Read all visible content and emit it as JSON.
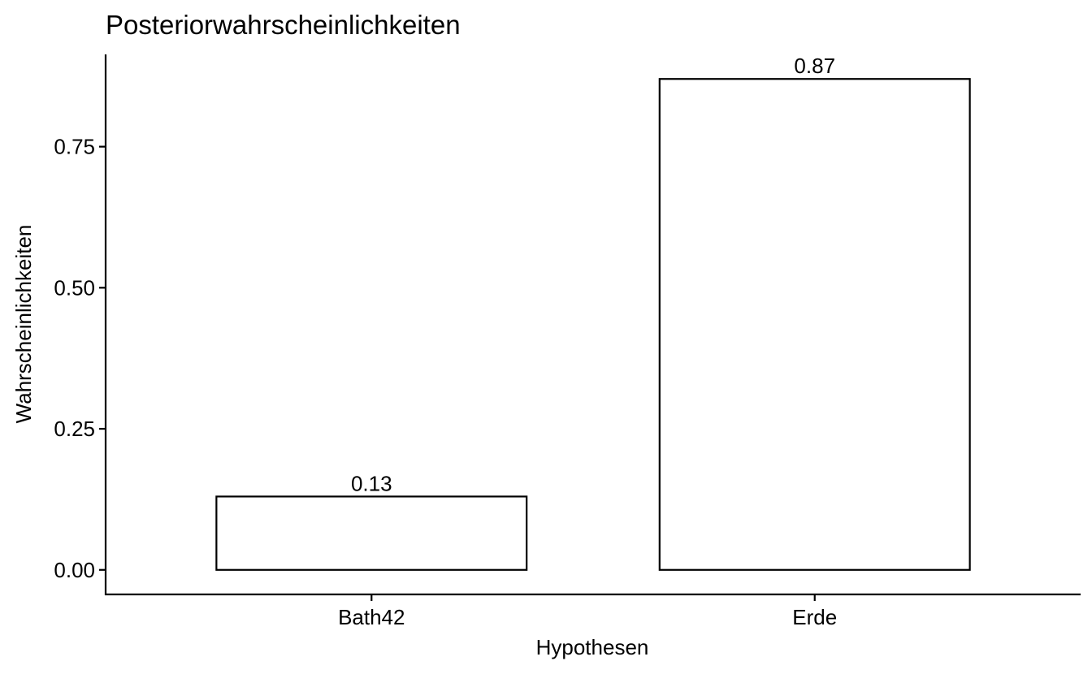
{
  "chart_data": {
    "type": "bar",
    "title": "Posteriorwahrscheinlichkeiten",
    "xlabel": "Hypothesen",
    "ylabel": "Wahrscheinlichkeiten",
    "categories": [
      "Bath42",
      "Erde"
    ],
    "values": [
      0.13,
      0.87
    ],
    "data_labels": [
      "0.13",
      "0.87"
    ],
    "ylim": [
      -0.0435,
      0.9135
    ],
    "yticks": [
      0.0,
      0.25,
      0.5,
      0.75
    ],
    "ytick_labels": [
      "0.00",
      "0.25",
      "0.50",
      "0.75"
    ],
    "grid": false,
    "legend": "none",
    "colors": {
      "bar_fill": "#ffffff",
      "bar_stroke": "#000000",
      "axis": "#000000",
      "background": "#ffffff"
    }
  }
}
